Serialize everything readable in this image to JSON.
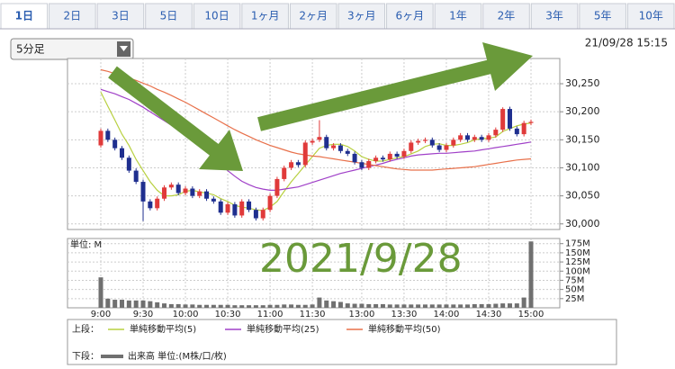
{
  "tabs": [
    "1日",
    "2日",
    "3日",
    "5日",
    "10日",
    "1ヶ月",
    "2ヶ月",
    "3ヶ月",
    "6ヶ月",
    "1年",
    "2年",
    "3年",
    "5年",
    "10年"
  ],
  "period_select": "5分足",
  "timestamp": "21/09/28 15:15",
  "annotation": "2021/9/28",
  "legend": {
    "upper_label": "上段：",
    "lower_label": "下段："
  },
  "chart_data": [
    {
      "type": "candlestick",
      "up_color": "#e03a3a",
      "down_color": "#1f2f8f",
      "open": [
        30140,
        30166,
        30150,
        30135,
        30118,
        30095,
        30075,
        30040,
        30028,
        30045,
        30065,
        30070,
        30055,
        30063,
        30050,
        30058,
        30045,
        30040,
        30020,
        30035,
        30015,
        30040,
        30025,
        30010,
        30025,
        30050,
        30080,
        30100,
        30110,
        30105,
        30145,
        30150,
        30155,
        30135,
        30140,
        30130,
        30125,
        30110,
        30100,
        30112,
        30118,
        30115,
        30125,
        30120,
        30130,
        30145,
        30148,
        30150,
        30140,
        30132,
        30140,
        30150,
        30158,
        30150,
        30155,
        30150,
        30158,
        30168,
        30205,
        30170,
        30160,
        30180
      ],
      "high": [
        30170,
        30170,
        30154,
        30139,
        30122,
        30099,
        30079,
        30044,
        30049,
        30069,
        30074,
        30074,
        30067,
        30067,
        30062,
        30062,
        30049,
        30044,
        30039,
        30039,
        30044,
        30044,
        30029,
        30029,
        30054,
        30084,
        30104,
        30114,
        30114,
        30149,
        30152,
        30185,
        30159,
        30144,
        30144,
        30134,
        30129,
        30114,
        30116,
        30122,
        30122,
        30129,
        30129,
        30134,
        30149,
        30152,
        30154,
        30154,
        30144,
        30144,
        30154,
        30162,
        30162,
        30159,
        30159,
        30162,
        30172,
        30208,
        30209,
        30174,
        30184,
        30186
      ],
      "low": [
        30136,
        30146,
        30131,
        30114,
        30091,
        30071,
        30005,
        30024,
        30024,
        30041,
        30061,
        30051,
        30051,
        30046,
        30046,
        30041,
        30036,
        30016,
        30016,
        30011,
        30011,
        30021,
        30006,
        30006,
        30021,
        30046,
        30076,
        30096,
        30101,
        30101,
        30141,
        30146,
        30131,
        30131,
        30126,
        30121,
        30106,
        30096,
        30096,
        30108,
        30111,
        30111,
        30116,
        30116,
        30126,
        30141,
        30144,
        30136,
        30128,
        30128,
        30136,
        30146,
        30146,
        30146,
        30146,
        30146,
        30154,
        30164,
        30166,
        30156,
        30156,
        30176
      ],
      "close": [
        30166,
        30150,
        30135,
        30118,
        30095,
        30075,
        30040,
        30028,
        30045,
        30065,
        30070,
        30055,
        30063,
        30050,
        30058,
        30045,
        30040,
        30020,
        30035,
        30015,
        30040,
        30025,
        30010,
        30025,
        30050,
        30080,
        30100,
        30110,
        30105,
        30145,
        30148,
        30155,
        30135,
        30140,
        30130,
        30125,
        30110,
        30100,
        30112,
        30118,
        30115,
        30125,
        30120,
        30130,
        30145,
        30148,
        30150,
        30140,
        30132,
        30140,
        30150,
        30158,
        30150,
        30155,
        30150,
        30158,
        30168,
        30205,
        30170,
        30160,
        30180,
        30182
      ],
      "lines": [
        {
          "name": "単純移動平均(5)",
          "color": "#b8d040",
          "values": [
            30235,
            30210,
            30185,
            30160,
            30140,
            30115,
            30095,
            30075,
            30060,
            30050,
            30050,
            30052,
            30058,
            30060,
            30057,
            30055,
            30052,
            30045,
            30040,
            30033,
            30030,
            30028,
            30025,
            30024,
            30030,
            30040,
            30058,
            30075,
            30090,
            30105,
            30120,
            30135,
            30140,
            30142,
            30142,
            30138,
            30130,
            30120,
            30115,
            30112,
            30112,
            30115,
            30118,
            30120,
            30125,
            30130,
            30138,
            30142,
            30143,
            30140,
            30140,
            30142,
            30145,
            30150,
            30152,
            30153,
            30155,
            30165,
            30170,
            30175,
            30178,
            30180
          ]
        },
        {
          "name": "単純移動平均(25)",
          "color": "#a040c8",
          "values": [
            30240,
            30236,
            30232,
            30227,
            30222,
            30215,
            30208,
            30200,
            30192,
            30184,
            30176,
            30168,
            30160,
            30150,
            30140,
            30130,
            30118,
            30106,
            30095,
            30085,
            30076,
            30070,
            30065,
            30062,
            30060,
            30060,
            30062,
            30064,
            30066,
            30070,
            30074,
            30078,
            30082,
            30086,
            30090,
            30093,
            30096,
            30099,
            30102,
            30105,
            30108,
            30112,
            30115,
            30118,
            30121,
            30123,
            30124,
            30125,
            30126,
            30126,
            30127,
            30128,
            30129,
            30130,
            30132,
            30134,
            30136,
            30138,
            30140,
            30142,
            30144,
            30146
          ]
        },
        {
          "name": "単純移動平均(50)",
          "color": "#e8704a",
          "values": [
            30275,
            30272,
            30268,
            30264,
            30260,
            30256,
            30251,
            30246,
            30240,
            30235,
            30229,
            30223,
            30217,
            30210,
            30203,
            30196,
            30189,
            30182,
            30175,
            30168,
            30162,
            30156,
            30150,
            30145,
            30140,
            30136,
            30132,
            30128,
            30125,
            30123,
            30121,
            30120,
            30118,
            30116,
            30114,
            30112,
            30110,
            30108,
            30106,
            30104,
            30102,
            30100,
            30098,
            30097,
            30096,
            30096,
            30096,
            30096,
            30097,
            30098,
            30099,
            30100,
            30101,
            30102,
            30104,
            30106,
            30108,
            30110,
            30112,
            30114,
            30115,
            30116
          ]
        }
      ],
      "ylim": [
        29990,
        30295
      ],
      "yticks": [
        {
          "value": 30000,
          "label": "30,000"
        },
        {
          "value": 30050,
          "label": "30,050"
        },
        {
          "value": 30100,
          "label": "30,100"
        },
        {
          "value": 30150,
          "label": "30,150"
        },
        {
          "value": 30200,
          "label": "30,200"
        },
        {
          "value": 30250,
          "label": "30,250"
        }
      ],
      "grid": true
    },
    {
      "type": "bar",
      "unit_label": "単位: M",
      "name": "出来高 単位:(M株/口/枚)",
      "color": "#707070",
      "categories": [
        "9:00",
        null,
        null,
        null,
        null,
        null,
        "9:30",
        null,
        null,
        null,
        null,
        null,
        "10:00",
        null,
        null,
        null,
        null,
        null,
        "10:30",
        null,
        null,
        null,
        null,
        null,
        "11:00",
        null,
        null,
        null,
        null,
        null,
        "11:30",
        null,
        null,
        null,
        null,
        null,
        null,
        "13:00",
        null,
        null,
        null,
        null,
        null,
        "13:30",
        null,
        null,
        null,
        null,
        null,
        "14:00",
        null,
        null,
        null,
        null,
        null,
        "14:30",
        null,
        null,
        null,
        null,
        null,
        "15:00"
      ],
      "values": [
        83,
        25,
        22,
        22,
        20,
        20,
        20,
        18,
        15,
        12,
        10,
        10,
        9,
        9,
        8,
        8,
        8,
        8,
        8,
        7,
        7,
        7,
        7,
        7,
        8,
        8,
        9,
        9,
        8,
        8,
        9,
        28,
        20,
        18,
        16,
        12,
        11,
        11,
        10,
        10,
        10,
        9,
        9,
        9,
        9,
        9,
        9,
        9,
        9,
        9,
        9,
        9,
        9,
        10,
        10,
        10,
        11,
        12,
        12,
        12,
        28,
        181
      ],
      "ylim": [
        0,
        189
      ],
      "yticks": [
        {
          "value": 25,
          "label": "25M"
        },
        {
          "value": 50,
          "label": "50M"
        },
        {
          "value": 75,
          "label": "75M"
        },
        {
          "value": 100,
          "label": "100M"
        },
        {
          "value": 125,
          "label": "125M"
        },
        {
          "value": 150,
          "label": "150M"
        },
        {
          "value": 175,
          "label": "175M"
        }
      ],
      "grid": true
    }
  ]
}
